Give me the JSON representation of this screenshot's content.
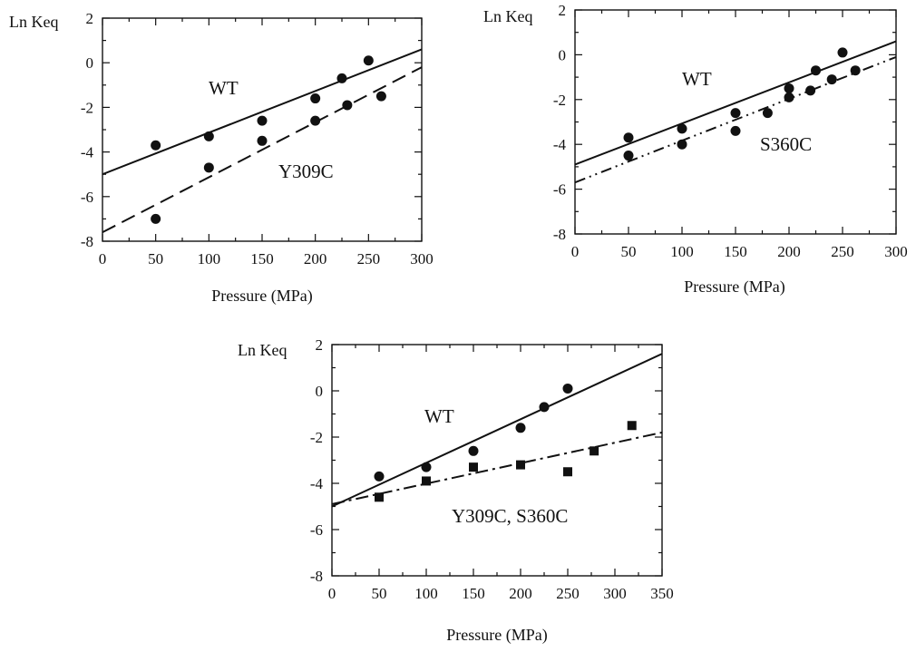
{
  "chart_data": [
    {
      "type": "scatter",
      "title": "",
      "xlabel": "Pressure (MPa)",
      "ylabel": "Ln Keq",
      "xlim": [
        0,
        300
      ],
      "ylim": [
        -8,
        2
      ],
      "xticks": [
        0,
        50,
        100,
        150,
        200,
        250,
        300
      ],
      "yticks": [
        -8,
        -6,
        -4,
        -2,
        0,
        2
      ],
      "series": [
        {
          "name": "WT",
          "marker": "circle",
          "line_style": "solid",
          "points": [
            [
              50,
              -3.7
            ],
            [
              100,
              -3.3
            ],
            [
              150,
              -2.6
            ],
            [
              200,
              -1.6
            ],
            [
              225,
              -0.7
            ],
            [
              250,
              0.1
            ]
          ],
          "fit": [
            [
              0,
              -5.0
            ],
            [
              300,
              0.6
            ]
          ]
        },
        {
          "name": "Y309C",
          "marker": "circle",
          "line_style": "dashed",
          "points": [
            [
              50,
              -7.0
            ],
            [
              100,
              -4.7
            ],
            [
              150,
              -3.5
            ],
            [
              200,
              -2.6
            ],
            [
              230,
              -1.9
            ],
            [
              262,
              -1.5
            ]
          ],
          "fit": [
            [
              0,
              -7.6
            ],
            [
              300,
              -0.2
            ]
          ]
        }
      ]
    },
    {
      "type": "scatter",
      "title": "",
      "xlabel": "Pressure (MPa)",
      "ylabel": "Ln Keq",
      "xlim": [
        0,
        300
      ],
      "ylim": [
        -8,
        2
      ],
      "xticks": [
        0,
        50,
        100,
        150,
        200,
        250,
        300
      ],
      "yticks": [
        -8,
        -6,
        -4,
        -2,
        0,
        2
      ],
      "series": [
        {
          "name": "WT",
          "marker": "circle",
          "line_style": "solid",
          "points": [
            [
              50,
              -3.7
            ],
            [
              100,
              -3.3
            ],
            [
              150,
              -2.6
            ],
            [
              200,
              -1.5
            ],
            [
              225,
              -0.7
            ],
            [
              250,
              0.1
            ]
          ],
          "fit": [
            [
              0,
              -4.9
            ],
            [
              300,
              0.6
            ]
          ]
        },
        {
          "name": "S360C",
          "marker": "circle",
          "line_style": "dash-dot-dot",
          "points": [
            [
              50,
              -4.5
            ],
            [
              100,
              -4.0
            ],
            [
              150,
              -3.4
            ],
            [
              180,
              -2.6
            ],
            [
              200,
              -1.9
            ],
            [
              220,
              -1.6
            ],
            [
              240,
              -1.1
            ],
            [
              262,
              -0.7
            ]
          ],
          "fit": [
            [
              0,
              -5.7
            ],
            [
              300,
              -0.1
            ]
          ]
        }
      ]
    },
    {
      "type": "scatter",
      "title": "",
      "xlabel": "Pressure (MPa)",
      "ylabel": "Ln Keq",
      "xlim": [
        0,
        350
      ],
      "ylim": [
        -8,
        2
      ],
      "xticks": [
        0,
        50,
        100,
        150,
        200,
        250,
        300,
        350
      ],
      "yticks": [
        -8,
        -6,
        -4,
        -2,
        0,
        2
      ],
      "series": [
        {
          "name": "WT",
          "marker": "circle",
          "line_style": "solid",
          "points": [
            [
              50,
              -3.7
            ],
            [
              100,
              -3.3
            ],
            [
              150,
              -2.6
            ],
            [
              200,
              -1.6
            ],
            [
              225,
              -0.7
            ],
            [
              250,
              0.1
            ]
          ],
          "fit": [
            [
              0,
              -5.0
            ],
            [
              350,
              1.6
            ]
          ]
        },
        {
          "name": "Y309C, S360C",
          "marker": "square",
          "line_style": "dash-dot",
          "points": [
            [
              50,
              -4.6
            ],
            [
              100,
              -3.9
            ],
            [
              150,
              -3.3
            ],
            [
              200,
              -3.2
            ],
            [
              250,
              -3.5
            ],
            [
              278,
              -2.6
            ],
            [
              318,
              -1.5
            ]
          ],
          "fit": [
            [
              0,
              -4.9
            ],
            [
              350,
              -1.8
            ]
          ]
        }
      ]
    }
  ]
}
